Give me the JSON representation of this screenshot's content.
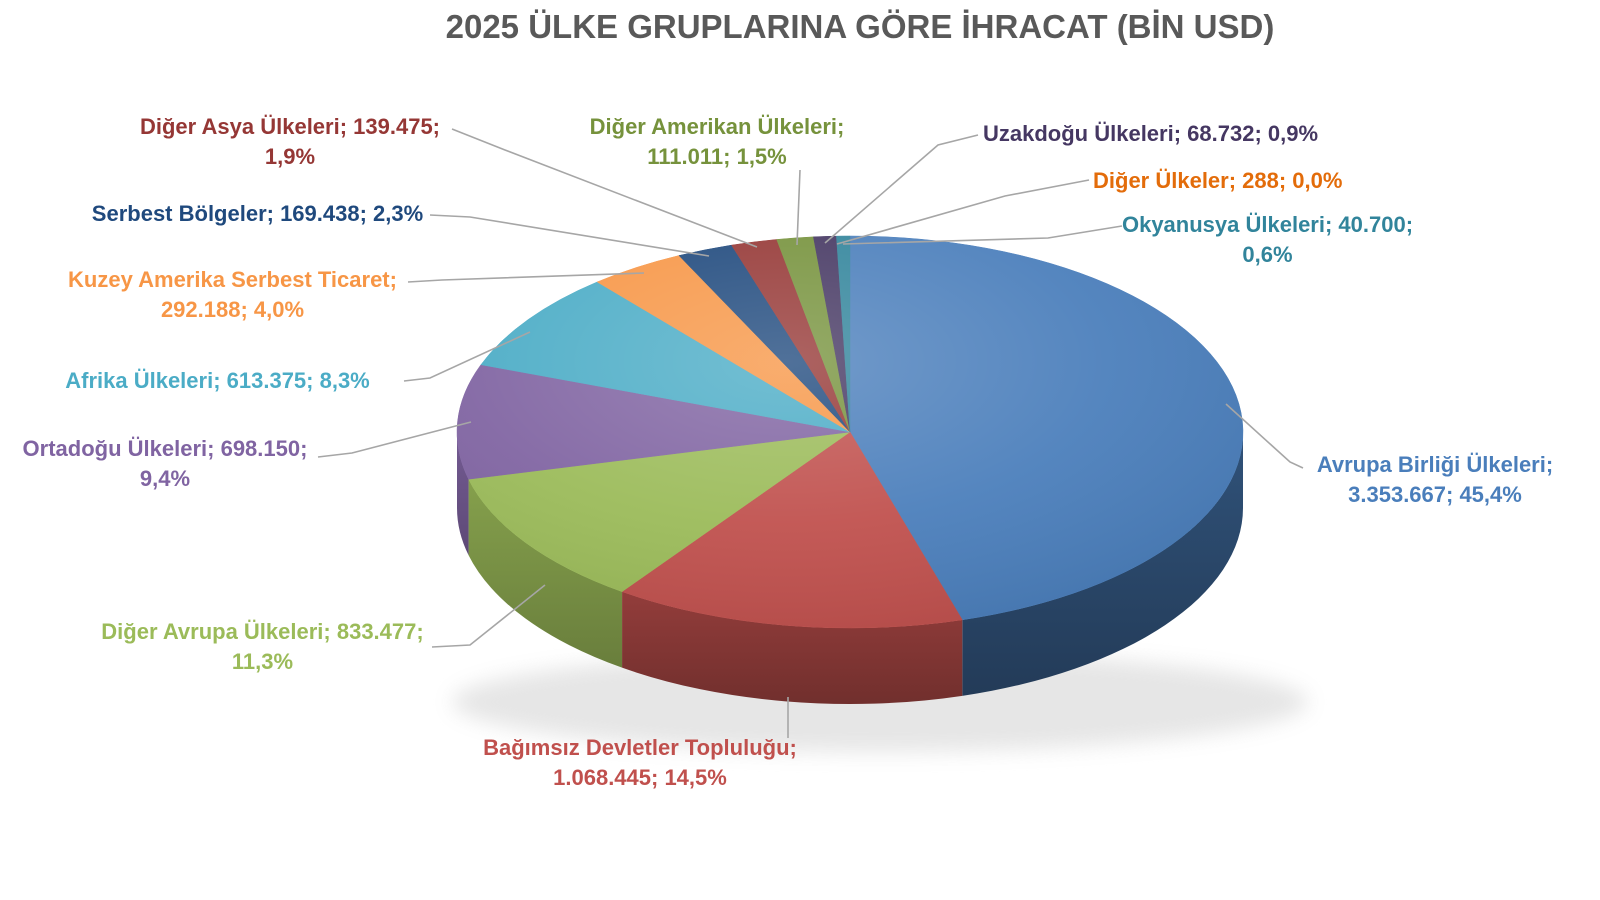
{
  "chart_data": {
    "type": "pie",
    "style": "3d",
    "title": "2025 ÜLKE GRUPLARINA GÖRE İHRACAT (BİN USD)",
    "unit": "BİN USD",
    "label_format": "name; value; percent",
    "legend_position": "none",
    "start_angle_deg": 0,
    "direction": "clockwise",
    "slices": [
      {
        "name": "Avrupa Birliği Ülkeleri",
        "value": 3353667,
        "percent": "45,4%",
        "color": "#4A7EBB",
        "label_lines": [
          "Avrupa Birliği Ülkeleri;",
          "3.353.667; 45,4%"
        ]
      },
      {
        "name": "Bağımsız Devletler Topluluğu",
        "value": 1068445,
        "percent": "14,5%",
        "color": "#C0504D",
        "label_lines": [
          "Bağımsız Devletler Topluluğu;",
          "1.068.445; 14,5%"
        ]
      },
      {
        "name": "Diğer Avrupa Ülkeleri",
        "value": 833477,
        "percent": "11,3%",
        "color": "#9BBB59",
        "label_lines": [
          "Diğer Avrupa Ülkeleri; 833.477;",
          "11,3%"
        ]
      },
      {
        "name": "Ortadoğu Ülkeleri",
        "value": 698150,
        "percent": "9,4%",
        "color": "#8064A2",
        "label_lines": [
          "Ortadoğu Ülkeleri; 698.150;",
          "9,4%"
        ]
      },
      {
        "name": "Afrika Ülkeleri",
        "value": 613375,
        "percent": "8,3%",
        "color": "#4BACC6",
        "label_lines": [
          "Afrika Ülkeleri; 613.375; 8,3%"
        ]
      },
      {
        "name": "Kuzey Amerika Serbest Ticaret",
        "value": 292188,
        "percent": "4,0%",
        "color": "#F79646",
        "label_lines": [
          "Kuzey Amerika Serbest Ticaret;",
          "292.188; 4,0%"
        ]
      },
      {
        "name": "Serbest Bölgeler",
        "value": 169438,
        "percent": "2,3%",
        "color": "#1F497D",
        "label_lines": [
          "Serbest Bölgeler; 169.438; 2,3%"
        ]
      },
      {
        "name": "Diğer Asya Ülkeleri",
        "value": 139475,
        "percent": "1,9%",
        "color": "#953735",
        "label_lines": [
          "Diğer Asya Ülkeleri; 139.475;",
          "1,9%"
        ]
      },
      {
        "name": "Diğer Amerikan Ülkeleri",
        "value": 111011,
        "percent": "1,5%",
        "color": "#76923C",
        "label_lines": [
          "Diğer Amerikan Ülkeleri;",
          "111.011; 1,5%"
        ]
      },
      {
        "name": "Uzakdoğu Ülkeleri",
        "value": 68732,
        "percent": "0,9%",
        "color": "#453762",
        "label_lines": [
          "Uzakdoğu Ülkeleri; 68.732; 0,9%"
        ]
      },
      {
        "name": "Diğer Ülkeler",
        "value": 288,
        "percent": "0,0%",
        "color": "#E36C0A",
        "label_lines": [
          "Diğer Ülkeler; 288; 0,0%"
        ]
      },
      {
        "name": "Okyanusya Ülkeleri",
        "value": 40700,
        "percent": "0,6%",
        "color": "#31849B",
        "label_lines": [
          "Okyanusya Ülkeleri; 40.700;",
          "0,6%"
        ]
      }
    ]
  },
  "colors": {
    "title": "#595959",
    "leader_line": "#A6A6A6",
    "background": "#FFFFFF"
  }
}
